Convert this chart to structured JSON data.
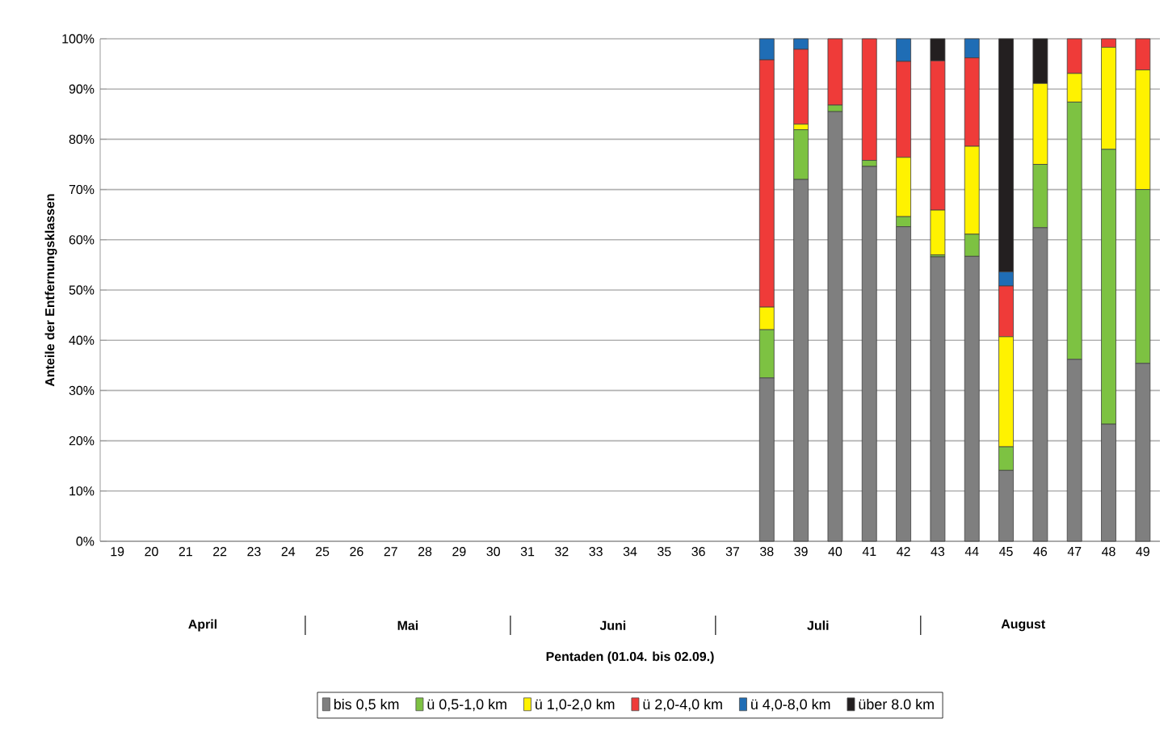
{
  "chart_data": {
    "type": "bar",
    "stacked": true,
    "ylabel": "Anteile der Entfernungsklassen",
    "categories": [
      "19",
      "20",
      "21",
      "22",
      "23",
      "24",
      "25",
      "26",
      "27",
      "28",
      "29",
      "30",
      "31",
      "32",
      "33",
      "34",
      "35",
      "36",
      "37",
      "38",
      "39",
      "40",
      "41",
      "42",
      "43",
      "44",
      "45",
      "46",
      "47",
      "48",
      "49"
    ],
    "series": [
      {
        "name": "bis 0,5 km",
        "color": "#7f7f7f",
        "values": [
          0,
          0,
          0,
          0,
          0,
          0,
          0,
          0,
          0,
          0,
          0,
          0,
          0,
          0,
          0,
          0,
          0,
          0,
          0,
          32.5,
          72,
          85.5,
          74.6,
          62.6,
          56.6,
          56.7,
          14.1,
          62.4,
          36.2,
          23.3,
          35.4
        ]
      },
      {
        "name": "ü 0,5-1,0 km",
        "color": "#7dc242",
        "values": [
          0,
          0,
          0,
          0,
          0,
          0,
          0,
          0,
          0,
          0,
          0,
          0,
          0,
          0,
          0,
          0,
          0,
          0,
          0,
          9.6,
          9.9,
          1.3,
          1.2,
          2,
          0.4,
          4.4,
          4.7,
          12.6,
          51.2,
          54.7,
          34.6
        ]
      },
      {
        "name": "ü 1,0-2,0 km",
        "color": "#fff200",
        "values": [
          0,
          0,
          0,
          0,
          0,
          0,
          0,
          0,
          0,
          0,
          0,
          0,
          0,
          0,
          0,
          0,
          0,
          0,
          0,
          4.5,
          1.1,
          0,
          0,
          11.8,
          8.9,
          17.5,
          21.9,
          16.1,
          5.7,
          20.3,
          23.8
        ]
      },
      {
        "name": "ü 2,0-4,0 km",
        "color": "#ef3b39",
        "values": [
          0,
          0,
          0,
          0,
          0,
          0,
          0,
          0,
          0,
          0,
          0,
          0,
          0,
          0,
          0,
          0,
          0,
          0,
          0,
          49.2,
          14.9,
          13.2,
          24.2,
          19.1,
          29.7,
          17.6,
          10.1,
          0,
          6.9,
          1.7,
          6.2
        ]
      },
      {
        "name": "ü 4,0-8,0 km",
        "color": "#1f6db5",
        "values": [
          0,
          0,
          0,
          0,
          0,
          0,
          0,
          0,
          0,
          0,
          0,
          0,
          0,
          0,
          0,
          0,
          0,
          0,
          0,
          4.2,
          2.1,
          0,
          0,
          4.5,
          0,
          3.8,
          2.8,
          0,
          0,
          0,
          0
        ]
      },
      {
        "name": "über 8.0 km",
        "color": "#231f20",
        "values": [
          0,
          0,
          0,
          0,
          0,
          0,
          0,
          0,
          0,
          0,
          0,
          0,
          0,
          0,
          0,
          0,
          0,
          0,
          0,
          0,
          0,
          0,
          0,
          0,
          4.4,
          0,
          46.4,
          8.9,
          0,
          0,
          0
        ]
      }
    ],
    "ylim": [
      0,
      100
    ],
    "yticks": [
      {
        "value": 0,
        "label": "0%"
      },
      {
        "value": 10,
        "label": "10%"
      },
      {
        "value": 20,
        "label": "20%"
      },
      {
        "value": 30,
        "label": "30%"
      },
      {
        "value": 40,
        "label": "40%"
      },
      {
        "value": 50,
        "label": "50%"
      },
      {
        "value": 60,
        "label": "60%"
      },
      {
        "value": 70,
        "label": "70%"
      },
      {
        "value": 80,
        "label": "80%"
      },
      {
        "value": 90,
        "label": "90%"
      },
      {
        "value": 100,
        "label": "100%"
      }
    ],
    "grid": "y",
    "legend": "bottom",
    "annotations": [
      "Pentaden (01.04. bis 02.09.)",
      "April",
      "Mai",
      "Juni",
      "Juli",
      "August"
    ]
  }
}
